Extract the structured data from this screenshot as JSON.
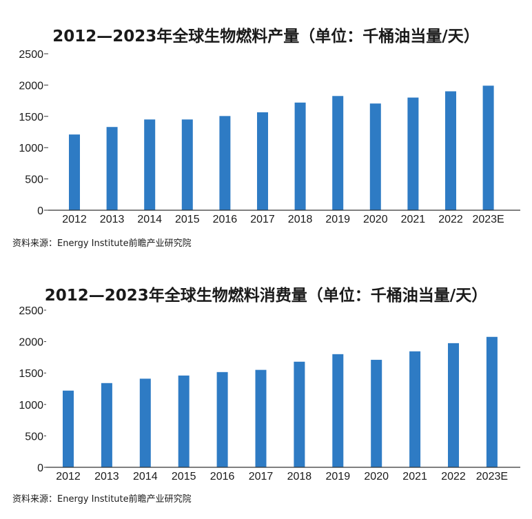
{
  "chart_data": [
    {
      "type": "bar",
      "title": "2012—2023年全球生物燃料产量（单位：千桶油当量/天）",
      "categories": [
        "2012",
        "2013",
        "2014",
        "2015",
        "2016",
        "2017",
        "2018",
        "2019",
        "2020",
        "2021",
        "2022",
        "2023E"
      ],
      "series": [
        {
          "values": [
            1210,
            1330,
            1450,
            1450,
            1505,
            1565,
            1720,
            1825,
            1705,
            1800,
            1900,
            1990
          ]
        }
      ],
      "ylim": [
        0,
        2500
      ],
      "yticks": [
        "0",
        "500",
        "1000",
        "1500",
        "2000",
        "2500"
      ],
      "source": "资料来源：Energy Institute前瞻产业研究院",
      "bar_color": "#2E7BC4"
    },
    {
      "type": "bar",
      "title": "2012—2023年全球生物燃料消费量（单位：千桶油当量/天）",
      "categories": [
        "2012",
        "2013",
        "2014",
        "2015",
        "2016",
        "2017",
        "2018",
        "2019",
        "2020",
        "2021",
        "2022",
        "2023E"
      ],
      "series": [
        {
          "values": [
            1220,
            1340,
            1410,
            1460,
            1515,
            1550,
            1680,
            1800,
            1710,
            1845,
            1975,
            2075
          ]
        }
      ],
      "ylim": [
        0,
        2500
      ],
      "yticks": [
        "0",
        "500",
        "1000",
        "1500",
        "2000",
        "2500"
      ],
      "source": "资料来源：Energy Institute前瞻产业研究院",
      "bar_color": "#2E7BC4"
    }
  ]
}
